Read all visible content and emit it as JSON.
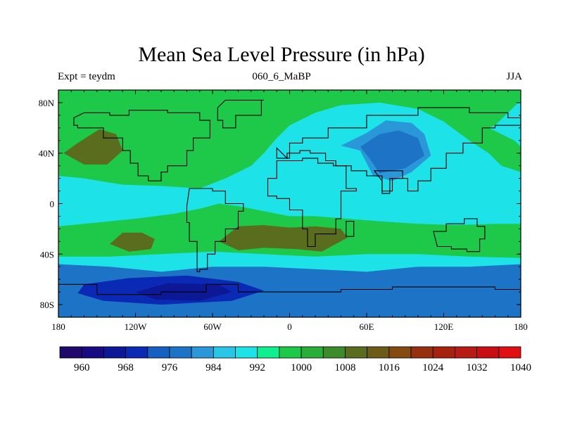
{
  "chart_data": {
    "type": "heatmap",
    "title": "Mean Sea Level Pressure (in hPa)",
    "subtitle_left": "Expt = teydm",
    "subtitle_center": "060_6_MaBP",
    "subtitle_right": "JJA",
    "x_range": [
      -180,
      180
    ],
    "y_range": [
      -90,
      90
    ],
    "x_ticks": [
      {
        "value": -180,
        "label": "180"
      },
      {
        "value": -120,
        "label": "120W"
      },
      {
        "value": -60,
        "label": "60W"
      },
      {
        "value": 0,
        "label": "0"
      },
      {
        "value": 60,
        "label": "60E"
      },
      {
        "value": 120,
        "label": "120E"
      },
      {
        "value": 180,
        "label": "180"
      }
    ],
    "y_ticks": [
      {
        "value": 80,
        "label": "80N"
      },
      {
        "value": 40,
        "label": "40N"
      },
      {
        "value": 0,
        "label": "0"
      },
      {
        "value": -40,
        "label": "40S"
      },
      {
        "value": -80,
        "label": "80S"
      }
    ],
    "colorbar": {
      "colors": [
        "#1f0a6b",
        "#170a82",
        "#0d1896",
        "#0a2ab5",
        "#1560c0",
        "#1d74c6",
        "#2a98d8",
        "#29c6e8",
        "#1de2e8",
        "#10ef8f",
        "#1ec94a",
        "#2aae3a",
        "#3d8c2c",
        "#5a6c1e",
        "#6d5c18",
        "#854a0f",
        "#96300e",
        "#a6220e",
        "#b81a14",
        "#c80f14",
        "#e00f14"
      ],
      "labels": [
        "960",
        "968",
        "976",
        "984",
        "992",
        "1000",
        "1008",
        "1016",
        "1024",
        "1032",
        "1040"
      ]
    },
    "field_levels": [
      {
        "value": 1000,
        "color": "#1de2e8",
        "region": "background"
      },
      {
        "value": 1008,
        "color": "#1ec94a",
        "region": "northern-mid-latitude-band"
      },
      {
        "value": 1008,
        "color": "#1ec94a",
        "region": "southern-subtropical-band"
      },
      {
        "value": 1016,
        "color": "#5a6c1e",
        "region": "north-pacific-high"
      },
      {
        "value": 1016,
        "color": "#5a6c1e",
        "region": "south-pacific-high"
      },
      {
        "value": 1016,
        "color": "#5a6c1e",
        "region": "south-atlantic-indian-high"
      },
      {
        "value": 992,
        "color": "#2a98d8",
        "region": "asian-low-outer"
      },
      {
        "value": 984,
        "color": "#1d74c6",
        "region": "asian-low-inner"
      },
      {
        "value": 984,
        "color": "#1d74c6",
        "region": "southern-ocean-trough"
      },
      {
        "value": 976,
        "color": "#0a2ab5",
        "region": "antarctic-low-outer"
      },
      {
        "value": 968,
        "color": "#0d1896",
        "region": "antarctic-low-inner"
      }
    ]
  }
}
